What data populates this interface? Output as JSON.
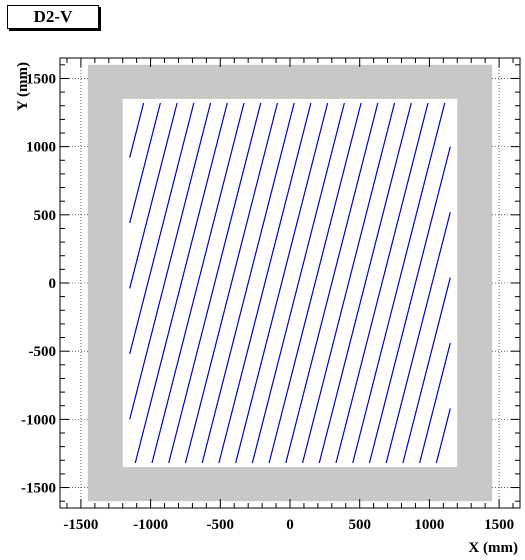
{
  "chart_data": {
    "type": "line",
    "title": "D2-V",
    "xlabel": "X (mm)",
    "ylabel": "Y (mm)",
    "xlim": [
      -1650,
      1650
    ],
    "ylim": [
      -1650,
      1650
    ],
    "x_ticks": [
      -1500,
      -1000,
      -500,
      0,
      500,
      1000,
      1500
    ],
    "y_ticks": [
      -1500,
      -1000,
      -500,
      0,
      500,
      1000,
      1500
    ],
    "x_tick_labels": [
      "-1500",
      "-1000",
      "-500",
      "0",
      "500",
      "1000",
      "1500"
    ],
    "y_tick_labels": [
      "-1500",
      "-1000",
      "-500",
      "0",
      "500",
      "1000",
      "1500"
    ],
    "grid": true,
    "frame_outer": {
      "x": [
        -1450,
        1450
      ],
      "y": [
        -1600,
        1600
      ],
      "color": "#c8c8c8"
    },
    "active_area": {
      "x": [
        -1200,
        1200
      ],
      "y": [
        -1350,
        1350
      ],
      "color": "#ffffff"
    },
    "wire_color": "#0000cc",
    "wire_dx_dy": 0.25,
    "wire_y_range": [
      -1320,
      1320
    ],
    "wire_x_range": [
      -1150,
      1150
    ],
    "wire_pitch_x": 120,
    "wire_intercepts_x0": [
      -1500,
      -1380,
      -1260,
      -1140,
      -1020,
      -900,
      -780,
      -660,
      -540,
      -420,
      -300,
      -180,
      -60,
      60,
      180,
      300,
      420,
      540,
      660,
      780,
      900,
      1020,
      1140,
      1260,
      1380,
      1500
    ]
  }
}
